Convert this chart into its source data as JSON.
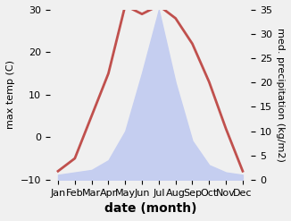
{
  "months": [
    "Jan",
    "Feb",
    "Mar",
    "Apr",
    "May",
    "Jun",
    "Jul",
    "Aug",
    "Sep",
    "Oct",
    "Nov",
    "Dec"
  ],
  "month_positions": [
    1,
    2,
    3,
    4,
    5,
    6,
    7,
    8,
    9,
    10,
    11,
    12
  ],
  "temperature": [
    -8,
    -5,
    5,
    15,
    31,
    29,
    31,
    28,
    22,
    13,
    2,
    -8
  ],
  "precipitation": [
    1,
    1.5,
    2,
    4,
    10,
    22,
    35,
    20,
    8,
    3,
    1.5,
    1
  ],
  "temp_ylim": [
    -10,
    30
  ],
  "precip_ylim": [
    0,
    35
  ],
  "temp_color": "#c0504d",
  "precip_color": "#aab4e8",
  "precip_fill_color": "#c5cef0",
  "xlabel": "date (month)",
  "ylabel_left": "max temp (C)",
  "ylabel_right": "med. precipitation (kg/m2)",
  "bg_color": "#f0f0f0",
  "tick_fontsize": 8,
  "label_fontsize": 10
}
